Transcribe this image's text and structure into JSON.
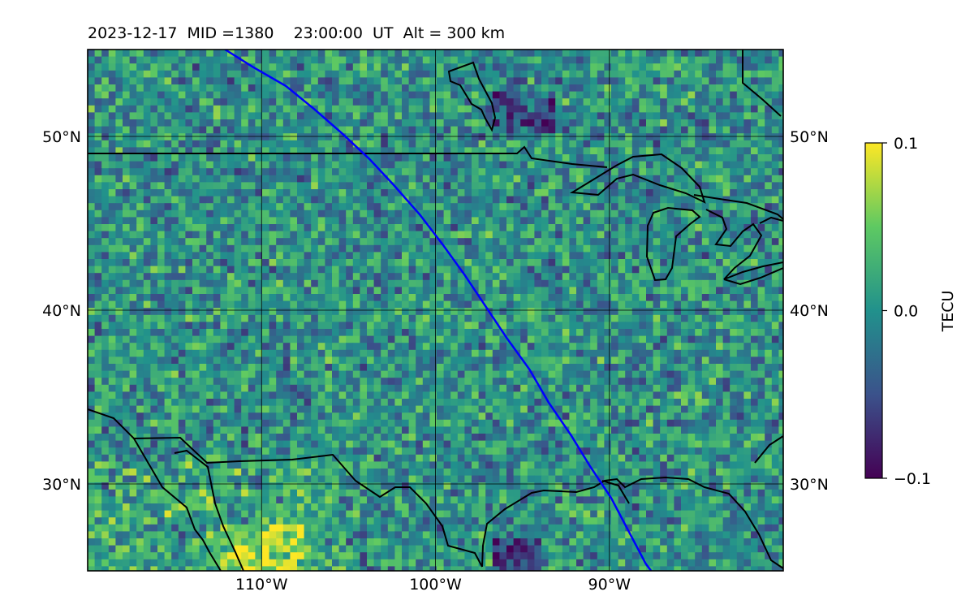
{
  "header": {
    "title": "2023-12-17  MID =1380    23:00:00  UT  Alt = 300 km"
  },
  "map": {
    "lon_range": [
      -120,
      -80
    ],
    "lat_range": [
      25,
      55
    ],
    "lon_ticks": [
      {
        "value": -110,
        "label": "110°W"
      },
      {
        "value": -100,
        "label": "100°W"
      },
      {
        "value": -90,
        "label": "90°W"
      }
    ],
    "lat_ticks": [
      {
        "value": 50,
        "label": "50°N"
      },
      {
        "value": 40,
        "label": "40°N"
      },
      {
        "value": 30,
        "label": "30°N"
      }
    ],
    "grid": true,
    "track_color": "#0000ff",
    "coast_color": "#000000",
    "track": [
      [
        -112.1,
        55.0
      ],
      [
        -110.5,
        54.0
      ],
      [
        -108.6,
        52.9
      ],
      [
        -107.0,
        51.6
      ],
      [
        -105.4,
        50.2
      ],
      [
        -103.8,
        48.7
      ],
      [
        -102.4,
        47.2
      ],
      [
        -100.9,
        45.5
      ],
      [
        -99.6,
        43.8
      ],
      [
        -98.3,
        42.0
      ],
      [
        -97.1,
        40.2
      ],
      [
        -95.9,
        38.4
      ],
      [
        -94.6,
        36.6
      ],
      [
        -93.5,
        34.7
      ],
      [
        -92.2,
        32.8
      ],
      [
        -91.1,
        31.0
      ],
      [
        -89.9,
        29.2
      ],
      [
        -88.9,
        27.3
      ],
      [
        -87.9,
        25.4
      ],
      [
        -87.6,
        25.0
      ]
    ]
  },
  "colorbar": {
    "label": "TECU",
    "min": -0.1,
    "max": 0.1,
    "ticks": [
      {
        "value": 0.1,
        "label": "0.1"
      },
      {
        "value": 0.0,
        "label": "0.0"
      },
      {
        "value": -0.1,
        "label": "−0.1"
      }
    ],
    "colormap": [
      "#440154",
      "#3b528b",
      "#21918c",
      "#5ec962",
      "#fde725"
    ]
  }
}
